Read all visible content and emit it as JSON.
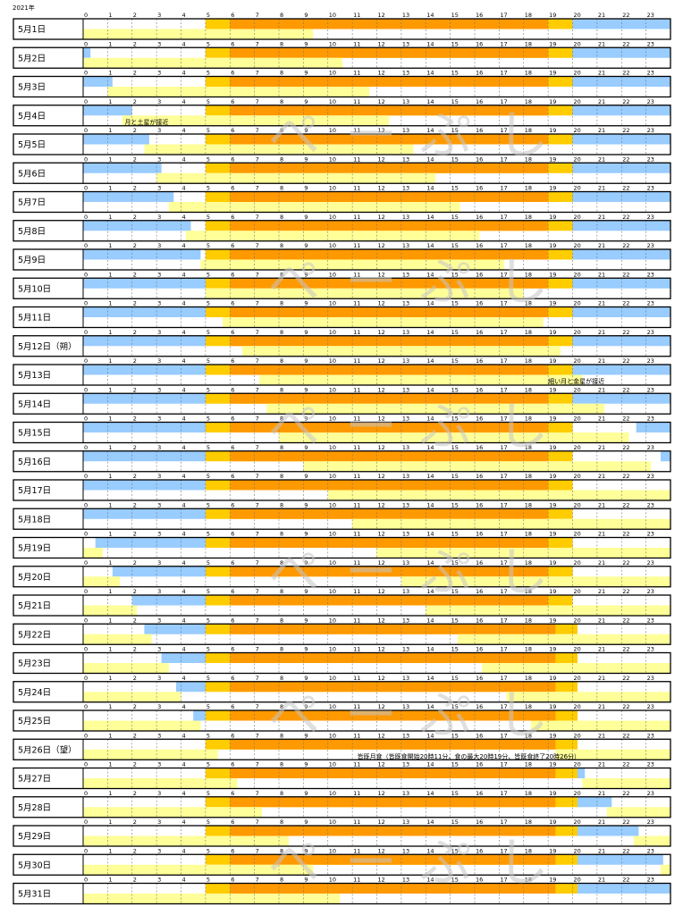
{
  "chart_data": {
    "type": "bar",
    "year_label": "2021年",
    "hours": [
      "0",
      "1",
      "2",
      "3",
      "4",
      "5",
      "6",
      "7",
      "8",
      "9",
      "10",
      "11",
      "12",
      "13",
      "14",
      "15",
      "16",
      "17",
      "18",
      "19",
      "20",
      "21",
      "22",
      "23"
    ],
    "colors": {
      "moon_above_horizon": "#99ccff",
      "moon_above_horizon_alt": "#ffff99",
      "daylight": "#ff9900",
      "twilight": "#ffcc00",
      "border": "#000000",
      "watermark": "#c0c0c0"
    },
    "watermark_text": "ぺーぷし",
    "days": [
      {
        "label": "5月1日",
        "twilight": [
          5,
          20
        ],
        "day": [
          6,
          19
        ],
        "blue": [
          [
            20,
            24
          ]
        ],
        "yellow": [
          [
            0,
            9.4
          ]
        ]
      },
      {
        "label": "5月2日",
        "twilight": [
          5,
          20
        ],
        "day": [
          6,
          19
        ],
        "blue": [
          [
            0,
            0.3
          ],
          [
            20,
            24
          ]
        ],
        "yellow": [
          [
            0,
            10.6
          ]
        ]
      },
      {
        "label": "5月3日",
        "twilight": [
          5,
          20
        ],
        "day": [
          6,
          19
        ],
        "blue": [
          [
            0,
            1.2
          ],
          [
            20,
            24
          ]
        ],
        "yellow": [
          [
            1,
            11.7
          ]
        ]
      },
      {
        "label": "5月4日",
        "twilight": [
          5,
          20
        ],
        "day": [
          6,
          19
        ],
        "blue": [
          [
            0,
            2
          ],
          [
            20,
            24
          ]
        ],
        "yellow": [
          [
            1.6,
            12.5
          ]
        ],
        "note": "月と土星が接近"
      },
      {
        "label": "5月5日",
        "twilight": [
          5,
          20
        ],
        "day": [
          6,
          19
        ],
        "blue": [
          [
            0,
            2.7
          ],
          [
            20,
            24
          ]
        ],
        "yellow": [
          [
            2.5,
            13.5
          ]
        ]
      },
      {
        "label": "5月6日",
        "twilight": [
          5,
          20
        ],
        "day": [
          6,
          19
        ],
        "blue": [
          [
            0,
            3.2
          ],
          [
            20,
            24
          ]
        ],
        "yellow": [
          [
            3,
            14.4
          ]
        ]
      },
      {
        "label": "5月7日",
        "twilight": [
          5,
          20
        ],
        "day": [
          6,
          19
        ],
        "blue": [
          [
            0,
            3.7
          ],
          [
            20,
            24
          ]
        ],
        "yellow": [
          [
            3.5,
            15.4
          ]
        ]
      },
      {
        "label": "5月8日",
        "twilight": [
          5,
          20
        ],
        "day": [
          6,
          19
        ],
        "blue": [
          [
            0,
            4.4
          ],
          [
            20,
            24
          ]
        ],
        "yellow": [
          [
            4.2,
            16.2
          ]
        ]
      },
      {
        "label": "5月9日",
        "twilight": [
          5,
          20
        ],
        "day": [
          6,
          19
        ],
        "blue": [
          [
            0,
            4.8
          ],
          [
            20,
            24
          ]
        ],
        "yellow": [
          [
            4.8,
            17.2
          ]
        ]
      },
      {
        "label": "5月10日",
        "twilight": [
          5,
          20
        ],
        "day": [
          6,
          19
        ],
        "blue": [
          [
            0,
            5
          ],
          [
            20,
            24
          ]
        ],
        "yellow": [
          [
            5,
            18
          ]
        ]
      },
      {
        "label": "5月11日",
        "twilight": [
          5,
          20
        ],
        "day": [
          6,
          19
        ],
        "blue": [
          [
            0,
            5
          ],
          [
            20,
            24
          ]
        ],
        "yellow": [
          [
            5.7,
            18.8
          ]
        ]
      },
      {
        "label": "5月12日（朔）",
        "twilight": [
          5,
          20
        ],
        "day": [
          6,
          19
        ],
        "blue": [
          [
            0,
            5
          ],
          [
            20,
            24
          ]
        ],
        "yellow": [
          [
            6.5,
            19.5
          ]
        ]
      },
      {
        "label": "5月13日",
        "twilight": [
          5,
          20
        ],
        "day": [
          6,
          19
        ],
        "blue": [
          [
            0,
            5
          ],
          [
            20,
            24
          ]
        ],
        "yellow": [
          [
            7.2,
            20.4
          ]
        ],
        "note": "細い月と金星が接近"
      },
      {
        "label": "5月14日",
        "twilight": [
          5,
          20
        ],
        "day": [
          6,
          19
        ],
        "blue": [
          [
            0,
            5
          ],
          [
            20,
            24
          ]
        ],
        "yellow": [
          [
            7.5,
            21.3
          ]
        ]
      },
      {
        "label": "5月15日",
        "twilight": [
          5,
          20
        ],
        "day": [
          6,
          19
        ],
        "blue": [
          [
            0,
            5
          ],
          [
            22.6,
            24
          ]
        ],
        "yellow": [
          [
            8,
            22.3
          ]
        ]
      },
      {
        "label": "5月16日",
        "twilight": [
          5,
          20
        ],
        "day": [
          6,
          19
        ],
        "blue": [
          [
            0,
            5
          ],
          [
            23.6,
            24
          ]
        ],
        "yellow": [
          [
            9,
            23.2
          ]
        ]
      },
      {
        "label": "5月17日",
        "twilight": [
          5,
          20
        ],
        "day": [
          6,
          19
        ],
        "blue": [
          [
            0,
            5
          ]
        ],
        "yellow": [
          [
            10,
            24
          ]
        ]
      },
      {
        "label": "5月18日",
        "twilight": [
          5,
          20
        ],
        "day": [
          6,
          19
        ],
        "blue": [
          [
            0,
            5
          ]
        ],
        "yellow": [
          [
            11,
            24
          ]
        ]
      },
      {
        "label": "5月19日",
        "twilight": [
          5,
          20
        ],
        "day": [
          6,
          19
        ],
        "blue": [
          [
            0.5,
            5
          ]
        ],
        "yellow": [
          [
            0,
            0.8
          ],
          [
            12,
            24
          ]
        ]
      },
      {
        "label": "5月20日",
        "twilight": [
          5,
          20
        ],
        "day": [
          6,
          19
        ],
        "blue": [
          [
            1.2,
            5
          ]
        ],
        "yellow": [
          [
            0,
            1.5
          ],
          [
            13,
            24
          ]
        ]
      },
      {
        "label": "5月21日",
        "twilight": [
          5,
          20
        ],
        "day": [
          6,
          19
        ],
        "blue": [
          [
            2,
            5
          ]
        ],
        "yellow": [
          [
            0,
            2.2
          ],
          [
            14,
            24
          ]
        ]
      },
      {
        "label": "5月22日",
        "twilight": [
          5,
          20.2
        ],
        "day": [
          6,
          19.3
        ],
        "blue": [
          [
            2.5,
            5
          ]
        ],
        "yellow": [
          [
            0,
            2.8
          ],
          [
            15.3,
            24
          ]
        ]
      },
      {
        "label": "5月23日",
        "twilight": [
          5,
          20.2
        ],
        "day": [
          6,
          19.3
        ],
        "blue": [
          [
            3.2,
            5
          ]
        ],
        "yellow": [
          [
            0,
            3.5
          ],
          [
            16.3,
            24
          ]
        ]
      },
      {
        "label": "5月24日",
        "twilight": [
          5,
          20.2
        ],
        "day": [
          6,
          19.3
        ],
        "blue": [
          [
            3.8,
            5
          ]
        ],
        "yellow": [
          [
            0,
            4
          ],
          [
            17.3,
            24
          ]
        ]
      },
      {
        "label": "5月25日",
        "twilight": [
          5,
          20.2
        ],
        "day": [
          6,
          19.3
        ],
        "blue": [
          [
            4.5,
            5
          ]
        ],
        "yellow": [
          [
            0,
            4.8
          ],
          [
            18.3,
            24
          ]
        ]
      },
      {
        "label": "5月26日（望）",
        "twilight": [
          5,
          20.2
        ],
        "day": [
          6,
          19.3
        ],
        "blue": [],
        "yellow": [
          [
            0,
            5.5
          ],
          [
            19.3,
            24
          ]
        ],
        "note": "皆既月食（皆既食開始20時11分、食の最大20時19分、皆既食終了20時26分）"
      },
      {
        "label": "5月27日",
        "twilight": [
          5,
          20.2
        ],
        "day": [
          6,
          19.3
        ],
        "blue": [
          [
            20.2,
            20.5
          ]
        ],
        "yellow": [
          [
            0,
            6.3
          ],
          [
            20.4,
            24
          ]
        ]
      },
      {
        "label": "5月28日",
        "twilight": [
          5,
          20.2
        ],
        "day": [
          6,
          19.3
        ],
        "blue": [
          [
            20.2,
            21.6
          ]
        ],
        "yellow": [
          [
            0,
            7.3
          ],
          [
            21.4,
            24
          ]
        ]
      },
      {
        "label": "5月29日",
        "twilight": [
          5,
          20.2
        ],
        "day": [
          6,
          19.3
        ],
        "blue": [
          [
            20.2,
            22.7
          ]
        ],
        "yellow": [
          [
            0,
            8.4
          ],
          [
            22.5,
            24
          ]
        ]
      },
      {
        "label": "5月30日",
        "twilight": [
          5,
          20.2
        ],
        "day": [
          6,
          19.3
        ],
        "blue": [
          [
            20.2,
            23.7
          ]
        ],
        "yellow": [
          [
            0,
            9.4
          ],
          [
            23.6,
            24
          ]
        ]
      },
      {
        "label": "5月31日",
        "twilight": [
          5,
          20.2
        ],
        "day": [
          6,
          19.3
        ],
        "blue": [
          [
            20.2,
            24
          ]
        ],
        "yellow": [
          [
            0,
            10.5
          ]
        ]
      }
    ]
  }
}
